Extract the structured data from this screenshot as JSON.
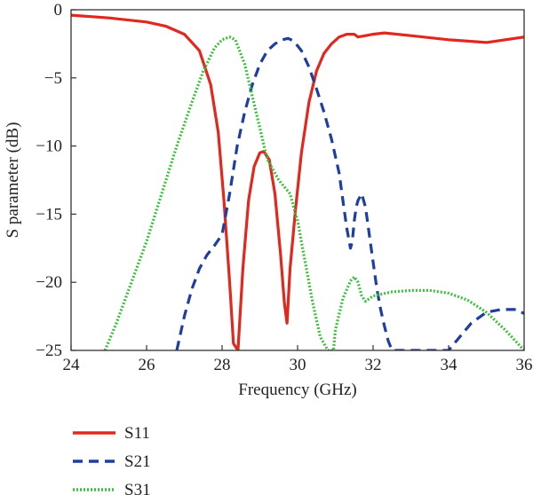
{
  "chart_data": {
    "type": "line",
    "title": "",
    "xlabel": "Frequency (GHz)",
    "ylabel": "S parameter (dB)",
    "xlim": [
      24,
      36
    ],
    "ylim": [
      -25,
      0
    ],
    "xticks": [
      24,
      26,
      28,
      30,
      32,
      34,
      36
    ],
    "yticks": [
      0,
      -5,
      -10,
      -15,
      -20,
      -25
    ],
    "xtick_labels": [
      "24",
      "26",
      "28",
      "30",
      "32",
      "34",
      "36"
    ],
    "ytick_labels": [
      "0",
      "−5",
      "−10",
      "−15",
      "−20",
      "−25"
    ],
    "grid": false,
    "legend_position": "bottom-left, below plot",
    "series": [
      {
        "name": "S11",
        "color": "#e0281f",
        "style": "solid",
        "x": [
          24.0,
          25.0,
          26.0,
          26.5,
          27.0,
          27.4,
          27.7,
          27.9,
          28.05,
          28.2,
          28.3,
          28.42,
          28.55,
          28.7,
          28.85,
          29.0,
          29.1,
          29.25,
          29.4,
          29.55,
          29.65,
          29.72,
          29.8,
          29.95,
          30.1,
          30.3,
          30.5,
          30.7,
          30.9,
          31.1,
          31.3,
          31.5,
          31.6,
          31.8,
          32.0,
          32.3,
          33.0,
          34.0,
          35.0,
          36.0
        ],
        "y": [
          -0.4,
          -0.6,
          -0.9,
          -1.2,
          -1.8,
          -3.0,
          -5.5,
          -9.0,
          -14.0,
          -20.0,
          -24.5,
          -25.0,
          -19.0,
          -14.0,
          -11.5,
          -10.5,
          -10.4,
          -11.0,
          -13.5,
          -18.0,
          -21.5,
          -23.0,
          -19.0,
          -14.5,
          -10.5,
          -6.8,
          -4.5,
          -3.2,
          -2.5,
          -2.0,
          -1.8,
          -1.8,
          -2.0,
          -1.9,
          -1.8,
          -1.7,
          -1.9,
          -2.2,
          -2.4,
          -2.0
        ]
      },
      {
        "name": "S21",
        "color": "#1e3fa0",
        "style": "dashed",
        "x": [
          26.8,
          27.0,
          27.2,
          27.4,
          27.6,
          27.8,
          28.0,
          28.2,
          28.4,
          28.6,
          28.8,
          29.0,
          29.2,
          29.4,
          29.6,
          29.75,
          29.9,
          30.1,
          30.3,
          30.5,
          30.7,
          30.9,
          31.1,
          31.2,
          31.3,
          31.4,
          31.45,
          31.5,
          31.55,
          31.6,
          31.7,
          31.8,
          31.9,
          32.0,
          32.1,
          32.2,
          32.3,
          32.4,
          32.5,
          34.0,
          34.3,
          34.6,
          35.0,
          35.4,
          35.8,
          36.0
        ],
        "y": [
          -25.0,
          -22.5,
          -20.5,
          -19.0,
          -18.0,
          -17.3,
          -16.5,
          -13.5,
          -10.0,
          -7.5,
          -5.5,
          -4.0,
          -3.0,
          -2.5,
          -2.2,
          -2.1,
          -2.3,
          -3.0,
          -4.2,
          -5.8,
          -7.5,
          -9.5,
          -12.0,
          -14.0,
          -16.0,
          -17.5,
          -17.0,
          -15.5,
          -14.5,
          -14.0,
          -13.5,
          -14.5,
          -16.5,
          -18.5,
          -20.5,
          -22.0,
          -23.2,
          -24.3,
          -25.0,
          -25.0,
          -24.0,
          -23.0,
          -22.2,
          -22.0,
          -22.0,
          -22.3
        ]
      },
      {
        "name": "S31",
        "color": "#3cbf3c",
        "style": "dotted",
        "x": [
          24.9,
          25.2,
          25.6,
          26.0,
          26.4,
          26.8,
          27.2,
          27.5,
          27.8,
          28.0,
          28.2,
          28.35,
          28.6,
          28.9,
          29.2,
          29.5,
          29.8,
          30.0,
          30.2,
          30.4,
          30.6,
          30.8,
          30.95,
          31.0,
          31.2,
          31.4,
          31.5,
          31.6,
          31.7,
          31.8,
          32.0,
          32.5,
          33.0,
          33.5,
          34.0,
          34.5,
          35.0,
          35.5,
          36.0
        ],
        "y": [
          -25.0,
          -23.0,
          -20.0,
          -17.0,
          -13.5,
          -10.0,
          -6.8,
          -4.5,
          -2.8,
          -2.2,
          -2.0,
          -2.2,
          -4.0,
          -7.5,
          -11.0,
          -12.5,
          -13.5,
          -15.5,
          -18.5,
          -21.5,
          -24.0,
          -25.0,
          -25.0,
          -23.5,
          -21.2,
          -19.9,
          -19.6,
          -20.0,
          -21.0,
          -21.4,
          -21.0,
          -20.7,
          -20.6,
          -20.6,
          -20.8,
          -21.3,
          -22.2,
          -23.5,
          -25.0
        ]
      }
    ]
  }
}
